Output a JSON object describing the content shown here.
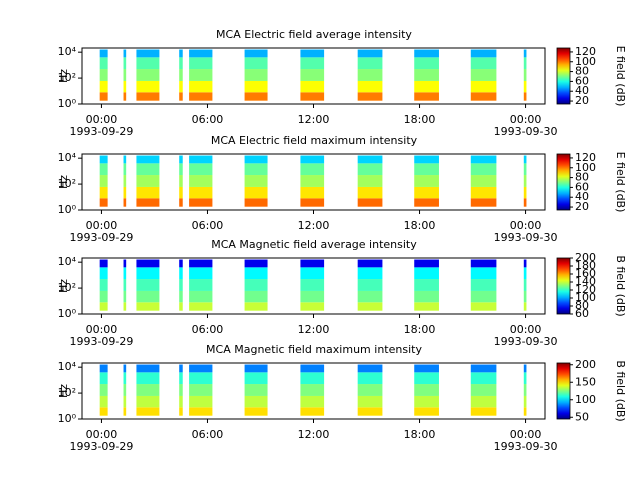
{
  "chart_data": [
    {
      "type": "spectrogram",
      "title": "MCA  Electric field average intensity",
      "ylabel": "Hz",
      "colorbar_label": "E field (dB)",
      "xlim": [
        -1.1,
        25.1
      ],
      "xticks": [
        {
          "value": 0,
          "label": "00:00"
        },
        {
          "value": 6,
          "label": "06:00"
        },
        {
          "value": 12,
          "label": "12:00"
        },
        {
          "value": 18,
          "label": "18:00"
        },
        {
          "value": 24,
          "label": "00:00"
        }
      ],
      "date_labels": [
        {
          "value": 0,
          "label": "1993-09-29"
        },
        {
          "value": 24,
          "label": "1993-09-30"
        }
      ],
      "log_y": true,
      "ylim": [
        1,
        21000
      ],
      "yticks": [
        {
          "value": 1,
          "label": "10⁰"
        },
        {
          "value": 100,
          "label": "10²"
        },
        {
          "value": 10000,
          "label": "10⁴"
        }
      ],
      "colormap": "jet",
      "clim": [
        14,
        128
      ],
      "cticks": [
        20,
        40,
        60,
        80,
        100,
        120
      ],
      "segments": [
        [
          -0.1,
          0.35
        ],
        [
          1.25,
          1.4
        ],
        [
          1.98,
          3.28
        ],
        [
          4.4,
          4.6
        ],
        [
          4.96,
          6.28
        ],
        [
          8.1,
          9.4
        ],
        [
          11.26,
          12.6
        ],
        [
          14.5,
          15.9
        ],
        [
          17.7,
          19.1
        ],
        [
          20.9,
          22.35
        ],
        [
          23.9,
          24.05
        ]
      ],
      "band_edges": [
        1.8,
        8,
        60,
        500,
        4000,
        16000
      ],
      "band_levels": [
        100,
        85,
        72,
        66,
        48
      ]
    },
    {
      "type": "spectrogram",
      "title": "MCA  Electric field maximum intensity",
      "ylabel": "Hz",
      "colorbar_label": "E field (dB)",
      "xlim": [
        -1.1,
        25.1
      ],
      "xticks": [
        {
          "value": 0,
          "label": "00:00"
        },
        {
          "value": 6,
          "label": "06:00"
        },
        {
          "value": 12,
          "label": "12:00"
        },
        {
          "value": 18,
          "label": "18:00"
        },
        {
          "value": 24,
          "label": "00:00"
        }
      ],
      "date_labels": [
        {
          "value": 0,
          "label": "1993-09-29"
        },
        {
          "value": 24,
          "label": "1993-09-30"
        }
      ],
      "log_y": true,
      "ylim": [
        1,
        21000
      ],
      "yticks": [
        {
          "value": 1,
          "label": "10⁰"
        },
        {
          "value": 100,
          "label": "10²"
        },
        {
          "value": 10000,
          "label": "10⁴"
        }
      ],
      "colormap": "jet",
      "clim": [
        14,
        128
      ],
      "cticks": [
        20,
        40,
        60,
        80,
        100,
        120
      ],
      "segments": [
        [
          -0.1,
          0.35
        ],
        [
          1.25,
          1.4
        ],
        [
          1.98,
          3.28
        ],
        [
          4.4,
          4.6
        ],
        [
          4.96,
          6.28
        ],
        [
          8.1,
          9.4
        ],
        [
          11.26,
          12.6
        ],
        [
          14.5,
          15.9
        ],
        [
          17.7,
          19.1
        ],
        [
          20.9,
          22.35
        ],
        [
          23.9,
          24.05
        ]
      ],
      "band_edges": [
        1.8,
        8,
        60,
        500,
        4000,
        16000
      ],
      "band_levels": [
        102,
        88,
        75,
        68,
        52
      ]
    },
    {
      "type": "spectrogram",
      "title": "MCA  Magnetic field average intensity",
      "ylabel": "Hz",
      "colorbar_label": "B field (dB)",
      "xlim": [
        -1.1,
        25.1
      ],
      "xticks": [
        {
          "value": 0,
          "label": "00:00"
        },
        {
          "value": 6,
          "label": "06:00"
        },
        {
          "value": 12,
          "label": "12:00"
        },
        {
          "value": 18,
          "label": "18:00"
        },
        {
          "value": 24,
          "label": "00:00"
        }
      ],
      "date_labels": [
        {
          "value": 0,
          "label": "1993-09-29"
        },
        {
          "value": 24,
          "label": "1993-09-30"
        }
      ],
      "log_y": true,
      "ylim": [
        1,
        21000
      ],
      "yticks": [
        {
          "value": 1,
          "label": "10⁰"
        },
        {
          "value": 100,
          "label": "10²"
        },
        {
          "value": 10000,
          "label": "10⁴"
        }
      ],
      "colormap": "jet",
      "clim": [
        60,
        200
      ],
      "cticks": [
        60,
        80,
        100,
        120,
        140,
        160,
        180,
        200
      ],
      "segments": [
        [
          -0.1,
          0.35
        ],
        [
          1.25,
          1.4
        ],
        [
          1.98,
          3.28
        ],
        [
          4.4,
          4.6
        ],
        [
          4.96,
          6.28
        ],
        [
          8.1,
          9.4
        ],
        [
          11.26,
          12.6
        ],
        [
          14.5,
          15.9
        ],
        [
          17.7,
          19.1
        ],
        [
          20.9,
          22.35
        ],
        [
          23.9,
          24.05
        ]
      ],
      "band_edges": [
        1.8,
        8,
        60,
        500,
        4000,
        16000
      ],
      "band_levels": [
        140,
        128,
        122,
        112,
        75
      ]
    },
    {
      "type": "spectrogram",
      "title": "MCA  Magnetic field maximum intensity",
      "ylabel": "Hz",
      "colorbar_label": "B field (dB)",
      "xlim": [
        -1.1,
        25.1
      ],
      "xticks": [
        {
          "value": 0,
          "label": "00:00"
        },
        {
          "value": 6,
          "label": "06:00"
        },
        {
          "value": 12,
          "label": "12:00"
        },
        {
          "value": 18,
          "label": "18:00"
        },
        {
          "value": 24,
          "label": "00:00"
        }
      ],
      "date_labels": [
        {
          "value": 0,
          "label": "1993-09-29"
        },
        {
          "value": 24,
          "label": "1993-09-30"
        }
      ],
      "log_y": true,
      "ylim": [
        1,
        21000
      ],
      "yticks": [
        {
          "value": 1,
          "label": "10⁰"
        },
        {
          "value": 100,
          "label": "10²"
        },
        {
          "value": 10000,
          "label": "10⁴"
        }
      ],
      "colormap": "jet",
      "clim": [
        45,
        205
      ],
      "cticks": [
        50,
        100,
        150,
        200
      ],
      "segments": [
        [
          -0.1,
          0.35
        ],
        [
          1.25,
          1.4
        ],
        [
          1.98,
          3.28
        ],
        [
          4.4,
          4.6
        ],
        [
          4.96,
          6.28
        ],
        [
          8.1,
          9.4
        ],
        [
          11.26,
          12.6
        ],
        [
          14.5,
          15.9
        ],
        [
          17.7,
          19.1
        ],
        [
          20.9,
          22.35
        ],
        [
          23.9,
          24.05
        ]
      ],
      "band_edges": [
        1.8,
        8,
        60,
        500,
        4000,
        16000
      ],
      "band_levels": [
        150,
        135,
        125,
        112,
        85
      ]
    }
  ]
}
